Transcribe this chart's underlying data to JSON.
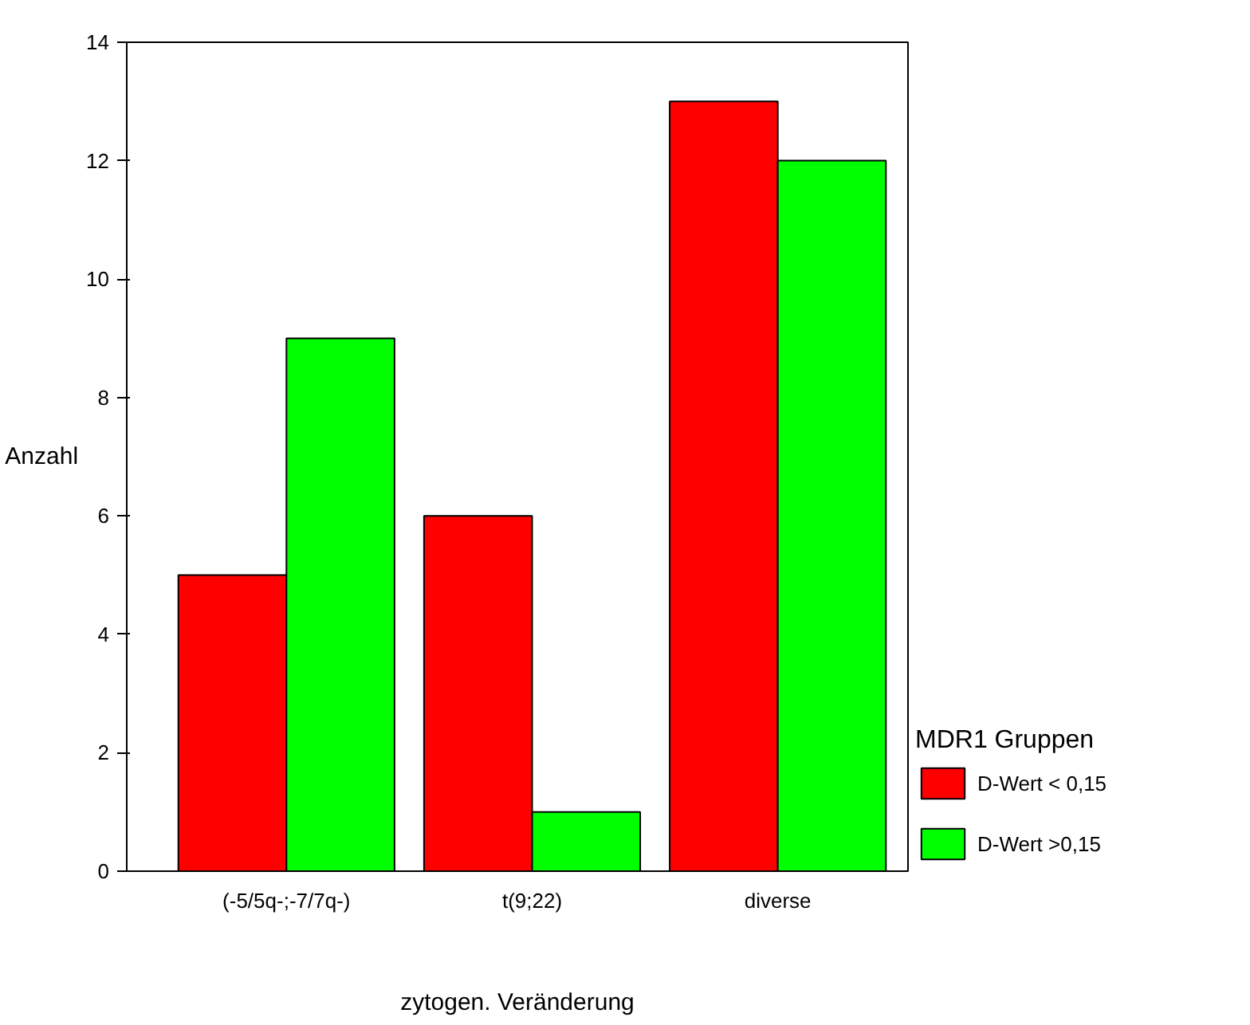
{
  "chart_data": {
    "type": "bar",
    "xlabel": "zytogen. Veränderung",
    "ylabel": "Anzahl",
    "legend_title": "MDR1 Gruppen",
    "categories": [
      "(-5/5q-;-7/7q-)",
      "t(9;22)",
      "diverse"
    ],
    "series": [
      {
        "name": "D-Wert < 0,15",
        "color": "#ff0000",
        "values": [
          5,
          6,
          13
        ]
      },
      {
        "name": "D-Wert >0,15",
        "color": "#00ff00",
        "values": [
          9,
          1,
          12
        ]
      }
    ],
    "ylim": [
      0,
      14
    ],
    "yticks": [
      0,
      2,
      4,
      6,
      8,
      10,
      12,
      14
    ],
    "grid": false,
    "legend": "right"
  }
}
